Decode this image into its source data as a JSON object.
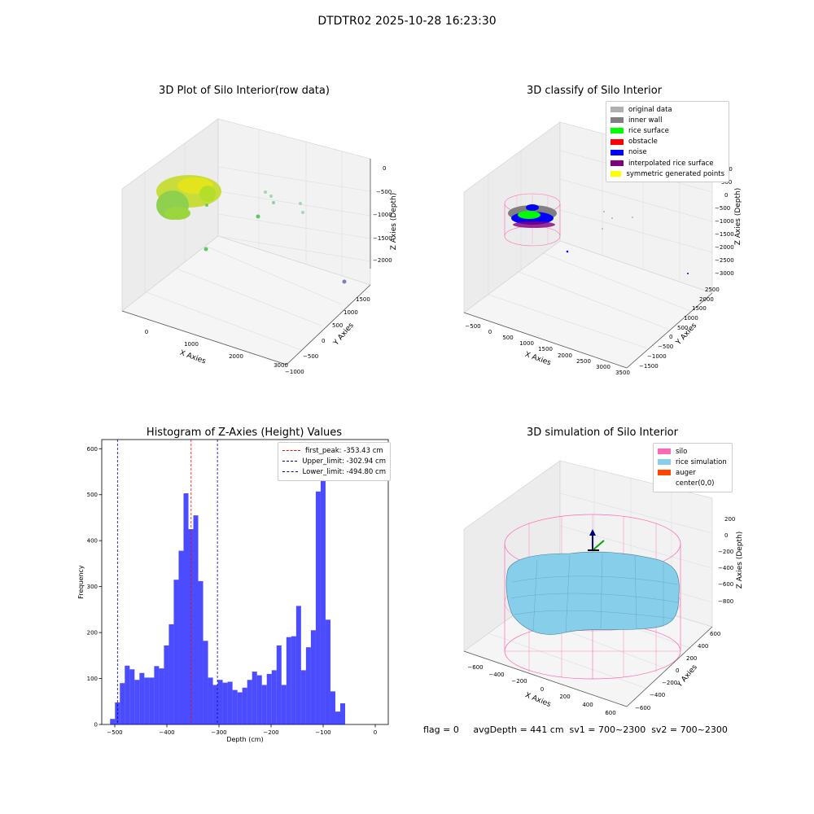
{
  "suptitle": "DTDTR02 2025-10-28 16:23:30",
  "footer": "flag = 0     avgDepth = 441 cm  sv1 = 700~2300  sv2 = 700~2300",
  "panel1": {
    "title": "3D Plot of Silo Interior(row data)",
    "xlabel": "X Axies",
    "ylabel": "Y Axies",
    "zlabel": "Z Axies (Depth)",
    "xticks": [
      "0",
      "1000",
      "2000",
      "3000"
    ],
    "yticks": [
      "1500",
      "1000",
      "500",
      "0",
      "−500",
      "−1000"
    ],
    "zticks": [
      "0",
      "−500",
      "−1000",
      "−1500",
      "−2000"
    ]
  },
  "panel2": {
    "title": "3D classify of Silo Interior",
    "xlabel": "X Axies",
    "ylabel": "Y Axies",
    "zlabel": "Z Axies (Depth)",
    "xticks": [
      "−500",
      "0",
      "500",
      "1000",
      "1500",
      "2000",
      "2500",
      "3000",
      "3500"
    ],
    "yticks": [
      "2500",
      "2000",
      "1500",
      "1000",
      "500",
      "0",
      "−500",
      "−1000",
      "−1500"
    ],
    "zticks": [
      "1000",
      "500",
      "0",
      "−500",
      "−1000",
      "−1500",
      "−2000",
      "−2500",
      "−3000"
    ],
    "legend": [
      {
        "label": "original data",
        "color": "#b0b0b0"
      },
      {
        "label": "inner wall",
        "color": "#808080"
      },
      {
        "label": "rice surface",
        "color": "#00ff00"
      },
      {
        "label": "obstacle",
        "color": "#ff0000"
      },
      {
        "label": "noise",
        "color": "#0000ff"
      },
      {
        "label": "interpolated rice surface",
        "color": "#800080"
      },
      {
        "label": "symmetric generated points",
        "color": "#ffff00"
      }
    ]
  },
  "panel4": {
    "title": "3D simulation of Silo Interior",
    "xlabel": "X Axies",
    "ylabel": "Y Axies",
    "zlabel": "Z Axies (Depth)",
    "xticks": [
      "−600",
      "−400",
      "−200",
      "0",
      "200",
      "400",
      "600"
    ],
    "yticks": [
      "600",
      "400",
      "200",
      "0",
      "−200",
      "−400",
      "−600"
    ],
    "zticks": [
      "200",
      "0",
      "−200",
      "−400",
      "−600",
      "−800"
    ],
    "legend": [
      {
        "label": "silo",
        "color": "#ff69b4"
      },
      {
        "label": "rice simulation",
        "color": "#87ceeb"
      },
      {
        "label": "auger",
        "color": "#ff4500"
      },
      {
        "label": "center(0,0)",
        "color": "#ffffff"
      }
    ]
  },
  "chart_data": [
    {
      "type": "scatter",
      "title": "3D Plot of Silo Interior(row data)",
      "xlabel": "X Axies",
      "ylabel": "Y Axies",
      "zlabel": "Z Axies (Depth)"
    },
    {
      "type": "scatter",
      "title": "3D classify of Silo Interior",
      "xlabel": "X Axies",
      "ylabel": "Y Axies",
      "zlabel": "Z Axies (Depth)",
      "legend": [
        "original data",
        "inner wall",
        "rice surface",
        "obstacle",
        "noise",
        "interpolated rice surface",
        "symmetric generated points"
      ]
    },
    {
      "type": "bar",
      "title": "Histogram of Z-Axies (Height) Values",
      "xlabel": "Depth (cm)",
      "ylabel": "Frequency",
      "xlim": [
        -525,
        25
      ],
      "ylim": [
        0,
        620
      ],
      "xticks": [
        -500,
        -400,
        -300,
        -200,
        -100,
        0
      ],
      "yticks": [
        0,
        100,
        200,
        300,
        400,
        500,
        600
      ],
      "bin_start": -509,
      "bin_width": 9.4,
      "values": [
        12,
        48,
        90,
        128,
        120,
        97,
        112,
        102,
        102,
        127,
        122,
        172,
        218,
        315,
        378,
        503,
        425,
        455,
        312,
        182,
        102,
        86,
        97,
        91,
        93,
        75,
        70,
        80,
        97,
        115,
        107,
        86,
        110,
        118,
        172,
        86,
        190,
        192,
        258,
        118,
        168,
        205,
        507,
        560,
        228,
        72,
        28,
        46
      ],
      "color": "#0000ff",
      "lines": [
        {
          "label": "first_peak: -353.43 cm",
          "x": -353.43,
          "color": "#ff0000"
        },
        {
          "label": "Upper_limit: -302.94 cm",
          "x": -302.94,
          "color": "#0000aa"
        },
        {
          "label": "Lower_limit: -494.80 cm",
          "x": -494.8,
          "color": "#0000aa"
        }
      ]
    },
    {
      "type": "area",
      "title": "3D simulation of Silo Interior",
      "xlabel": "X Axies",
      "ylabel": "Y Axies",
      "zlabel": "Z Axies (Depth)",
      "legend": [
        "silo",
        "rice simulation",
        "auger",
        "center(0,0)"
      ]
    }
  ]
}
